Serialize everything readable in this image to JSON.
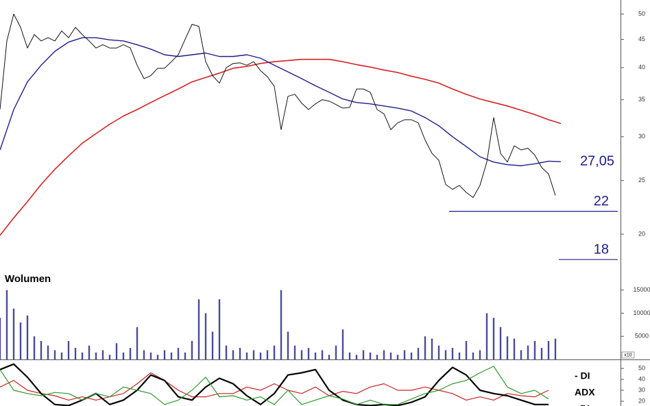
{
  "chart_data": [
    {
      "type": "line",
      "log_scale": true,
      "xlim": [
        0,
        905
      ],
      "ylim": [
        17.2,
        53
      ],
      "yticks": [
        50,
        45,
        40,
        35,
        30,
        25,
        20
      ],
      "series": [
        {
          "color": "#d42020",
          "width": 1.6,
          "x": [
            0,
            20,
            40,
            60,
            80,
            100,
            120,
            140,
            160,
            180,
            200,
            220,
            240,
            260,
            280,
            300,
            320,
            340,
            360,
            380,
            400,
            420,
            440,
            460,
            480,
            500,
            520,
            540,
            560,
            580,
            600,
            620,
            640,
            660,
            680,
            700,
            720,
            740,
            760,
            780,
            800,
            818
          ],
          "values": [
            19.9,
            21.4,
            22.9,
            24.6,
            26.2,
            27.7,
            29.2,
            30.4,
            31.6,
            32.7,
            33.6,
            34.6,
            35.6,
            36.6,
            37.7,
            38.4,
            39.1,
            39.9,
            40.2,
            40.7,
            41.0,
            41.2,
            41.4,
            41.4,
            41.4,
            41.0,
            40.5,
            40.1,
            39.6,
            39.2,
            38.6,
            38.1,
            37.5,
            36.6,
            35.8,
            35.1,
            34.6,
            34.1,
            33.5,
            32.9,
            32.2,
            31.7
          ]
        },
        {
          "color": "#1c1c8c",
          "width": 1.4,
          "x": [
            0,
            20,
            40,
            60,
            80,
            100,
            120,
            140,
            160,
            180,
            200,
            220,
            240,
            260,
            280,
            300,
            320,
            340,
            360,
            380,
            400,
            420,
            440,
            460,
            480,
            500,
            520,
            540,
            560,
            580,
            600,
            620,
            640,
            660,
            680,
            700,
            720,
            740,
            760,
            780,
            800,
            818
          ],
          "values": [
            28.4,
            33.6,
            37.7,
            40.4,
            42.8,
            44.5,
            45.3,
            45.3,
            44.9,
            44.7,
            44.0,
            43.2,
            42.2,
            41.9,
            42.2,
            42.5,
            41.9,
            41.9,
            42.2,
            41.6,
            40.4,
            39.3,
            38.2,
            37.1,
            36.1,
            35.1,
            34.6,
            34.4,
            34.1,
            33.8,
            33.4,
            32.5,
            31.4,
            30.0,
            28.8,
            27.6,
            27.0,
            26.7,
            26.6,
            26.8,
            27.1,
            27.05
          ]
        },
        {
          "color": "#111111",
          "width": 1,
          "x": [
            0,
            10,
            20,
            30,
            40,
            50,
            60,
            70,
            80,
            90,
            100,
            110,
            120,
            130,
            140,
            150,
            160,
            170,
            180,
            190,
            200,
            210,
            220,
            230,
            240,
            250,
            260,
            270,
            280,
            290,
            300,
            310,
            320,
            330,
            340,
            350,
            360,
            370,
            380,
            390,
            400,
            410,
            420,
            430,
            440,
            450,
            460,
            470,
            480,
            490,
            500,
            510,
            520,
            530,
            540,
            550,
            560,
            570,
            580,
            590,
            600,
            610,
            620,
            630,
            640,
            650,
            660,
            670,
            680,
            690,
            700,
            710,
            720,
            730,
            740,
            750,
            760,
            770,
            780,
            790,
            800,
            810
          ],
          "values": [
            33.6,
            44.7,
            50.0,
            47.3,
            43.4,
            45.9,
            44.7,
            45.3,
            44.7,
            46.6,
            45.3,
            47.3,
            45.9,
            44.7,
            43.4,
            44.0,
            43.4,
            43.4,
            44.0,
            43.4,
            40.4,
            38.2,
            38.7,
            39.9,
            39.9,
            41.0,
            42.2,
            45.0,
            47.9,
            47.5,
            41.0,
            38.7,
            37.5,
            40.0,
            40.7,
            40.8,
            40.4,
            41.0,
            39.5,
            38.5,
            37.0,
            30.9,
            35.5,
            35.8,
            34.5,
            33.6,
            34.4,
            35.0,
            34.8,
            34.3,
            33.8,
            33.9,
            36.6,
            36.6,
            36.1,
            33.6,
            33.0,
            30.9,
            31.8,
            32.2,
            32.2,
            31.8,
            29.6,
            28.0,
            27.2,
            24.6,
            24.1,
            24.5,
            23.8,
            23.3,
            24.5,
            27.0,
            32.5,
            28.0,
            27.0,
            28.9,
            28.4,
            28.6,
            27.8,
            26.4,
            25.7,
            23.5
          ]
        }
      ],
      "annotations": [
        {
          "value": 27.05,
          "label": "27,05"
        },
        {
          "value": 22,
          "label": "22",
          "x_start": 655
        },
        {
          "value": 18,
          "label": "18",
          "x_start": 815
        }
      ]
    },
    {
      "type": "bar",
      "title": "Wolumen",
      "xlim": [
        0,
        905
      ],
      "ylim": [
        0,
        18800
      ],
      "yticks": [
        15000,
        10000,
        5000
      ],
      "multiplier_label": "x10",
      "color": "#4a4a9a",
      "x": [
        0,
        10,
        20,
        30,
        40,
        50,
        60,
        70,
        80,
        90,
        100,
        110,
        120,
        130,
        140,
        150,
        160,
        170,
        180,
        190,
        200,
        210,
        220,
        230,
        240,
        250,
        260,
        270,
        280,
        290,
        300,
        310,
        320,
        330,
        340,
        350,
        360,
        370,
        380,
        390,
        400,
        410,
        420,
        430,
        440,
        450,
        460,
        470,
        480,
        490,
        500,
        510,
        520,
        530,
        540,
        550,
        560,
        570,
        580,
        590,
        600,
        610,
        620,
        630,
        640,
        650,
        660,
        670,
        680,
        690,
        700,
        710,
        720,
        730,
        740,
        750,
        760,
        770,
        780,
        790,
        800,
        810
      ],
      "values": [
        9000,
        15000,
        11000,
        8000,
        9500,
        5000,
        4000,
        3000,
        2000,
        1500,
        4000,
        2500,
        1500,
        3000,
        1500,
        2000,
        1000,
        3500,
        1500,
        2500,
        7000,
        2000,
        1500,
        1000,
        2000,
        1500,
        2500,
        1500,
        4000,
        13000,
        10000,
        6000,
        13000,
        3000,
        2000,
        2500,
        1500,
        2000,
        1500,
        2000,
        3000,
        15000,
        6000,
        3000,
        2000,
        2500,
        1500,
        2000,
        1000,
        3000,
        6500,
        1500,
        1000,
        2000,
        1500,
        1000,
        2000,
        1500,
        1000,
        2000,
        1500,
        2500,
        5000,
        4500,
        3000,
        2000,
        2500,
        1500,
        4000,
        1500,
        2000,
        10000,
        9000,
        7000,
        5000,
        4500,
        2000,
        3000,
        4000,
        2500,
        4000,
        4500
      ]
    },
    {
      "type": "line",
      "xlim": [
        0,
        905
      ],
      "ylim": [
        15.6,
        57
      ],
      "yticks": [
        50,
        40,
        30,
        20
      ],
      "series": [
        {
          "name": "- DI",
          "color": "#cc2222",
          "width": 1.2,
          "x": [
            0,
            20,
            40,
            60,
            80,
            100,
            120,
            140,
            160,
            180,
            200,
            220,
            240,
            260,
            280,
            300,
            320,
            340,
            360,
            380,
            400,
            420,
            440,
            460,
            480,
            500,
            520,
            540,
            560,
            580,
            600,
            620,
            640,
            660,
            680,
            700,
            720,
            740,
            760,
            780,
            800
          ],
          "values": [
            33,
            39,
            30,
            27,
            25,
            21,
            24,
            21,
            24,
            27,
            36,
            46,
            39,
            30,
            24,
            24,
            27,
            27,
            33,
            30,
            36,
            30,
            27,
            33,
            25,
            29,
            27,
            33,
            36,
            30,
            30,
            33,
            30,
            27,
            21,
            24,
            21,
            27,
            25,
            24,
            30
          ]
        },
        {
          "name": "ADX",
          "color": "#000000",
          "width": 2.2,
          "x": [
            0,
            20,
            40,
            60,
            80,
            100,
            120,
            140,
            160,
            180,
            200,
            220,
            240,
            260,
            280,
            300,
            320,
            340,
            360,
            380,
            400,
            420,
            440,
            460,
            480,
            500,
            520,
            540,
            560,
            580,
            600,
            620,
            640,
            660,
            680,
            700,
            720,
            740,
            760,
            780,
            800
          ],
          "values": [
            49,
            54,
            42,
            27,
            17,
            16,
            21,
            27,
            17,
            21,
            30,
            44,
            39,
            24,
            21,
            33,
            41,
            36,
            25,
            17,
            27,
            44,
            46,
            49,
            30,
            21,
            17,
            16,
            17,
            16,
            19,
            24,
            39,
            51,
            44,
            30,
            27,
            25,
            21,
            17,
            17
          ]
        },
        {
          "name": "+DI",
          "color": "#2a9a2a",
          "width": 1.2,
          "x": [
            0,
            20,
            40,
            60,
            80,
            100,
            120,
            140,
            160,
            180,
            200,
            220,
            240,
            260,
            280,
            300,
            320,
            340,
            360,
            380,
            400,
            420,
            440,
            460,
            480,
            500,
            520,
            540,
            560,
            580,
            600,
            620,
            640,
            660,
            680,
            700,
            720,
            740,
            760,
            780,
            800
          ],
          "values": [
            49,
            30,
            27,
            25,
            28,
            27,
            21,
            27,
            24,
            33,
            30,
            27,
            17,
            21,
            30,
            42,
            24,
            25,
            21,
            24,
            17,
            30,
            17,
            21,
            25,
            22,
            17,
            21,
            17,
            17,
            22,
            27,
            30,
            36,
            39,
            46,
            52,
            33,
            27,
            30,
            22
          ]
        }
      ]
    }
  ]
}
